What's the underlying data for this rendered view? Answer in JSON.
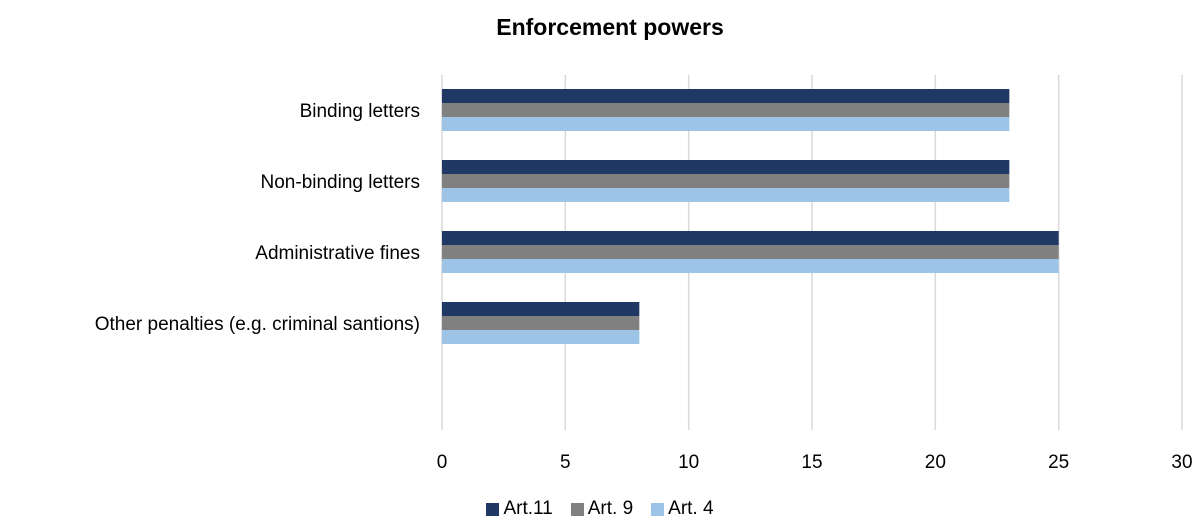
{
  "chart_data": {
    "type": "bar",
    "orientation": "horizontal",
    "title": "Enforcement powers",
    "xlabel": "",
    "ylabel": "",
    "categories": [
      "Binding letters",
      "Non-binding letters",
      "Administrative fines",
      "Other penalties (e.g. criminal santions)"
    ],
    "series": [
      {
        "name": "Art.11",
        "values": [
          23,
          23,
          25,
          8
        ],
        "color": "#203864"
      },
      {
        "name": "Art. 9",
        "values": [
          23,
          23,
          25,
          8
        ],
        "color": "#808080"
      },
      {
        "name": "Art. 4",
        "values": [
          23,
          23,
          25,
          8
        ],
        "color": "#9dc3e6"
      }
    ],
    "xlim": [
      0,
      30
    ],
    "xticks": [
      "0",
      "5",
      "10",
      "15",
      "20",
      "25",
      "30"
    ],
    "grid": "vertical",
    "legend_position": "bottom"
  }
}
